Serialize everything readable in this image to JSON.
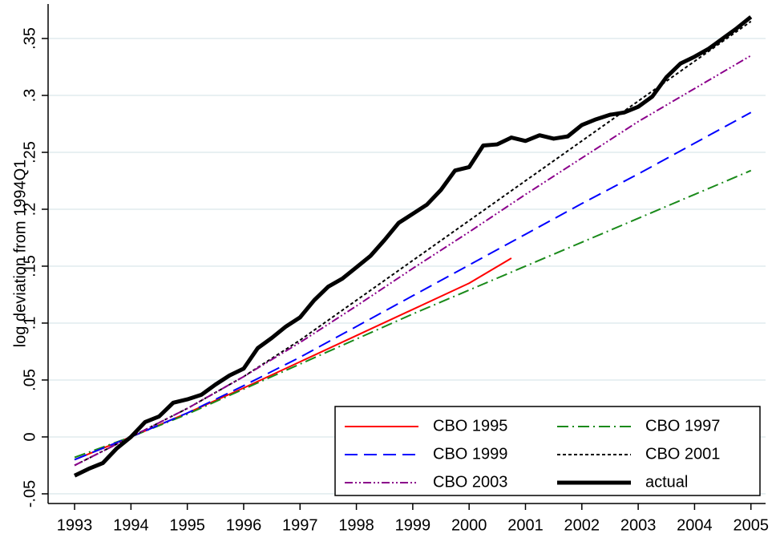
{
  "chart_data": {
    "type": "line",
    "y_label": "log deviation from 1994Q1",
    "xlim": [
      1992.53,
      2005.26
    ],
    "ylim": [
      -0.0585,
      0.3803
    ],
    "xticks": [
      1993,
      1994,
      1995,
      1996,
      1997,
      1998,
      1999,
      2000,
      2001,
      2002,
      2003,
      2004,
      2005
    ],
    "yticks": [
      {
        "value": -0.05,
        "label": "-.05"
      },
      0,
      {
        "value": 0.05,
        "label": ".05"
      },
      {
        "value": 0.1,
        "label": ".1"
      },
      {
        "value": 0.15,
        "label": ".15"
      },
      {
        "value": 0.2,
        "label": ".2"
      },
      {
        "value": 0.25,
        "label": ".25"
      },
      {
        "value": 0.3,
        "label": ".3"
      },
      {
        "value": 0.35,
        "label": ".35"
      }
    ],
    "grid": true,
    "legend": "lower right",
    "series": [
      {
        "name": "CBO 1995",
        "color": "#ff0000",
        "dash": "none",
        "width": 2,
        "x": [
          1993,
          1994,
          1995,
          1996,
          1997,
          1998,
          1999,
          2000,
          2000.75
        ],
        "values": [
          -0.02,
          0,
          0.021,
          0.043,
          0.066,
          0.089,
          0.112,
          0.135,
          0.157
        ]
      },
      {
        "name": "CBO 1997",
        "color": "#1a8a1a",
        "dash": "14 5 2 5",
        "width": 2,
        "x": [
          1993,
          1994,
          1995,
          1996,
          1997,
          1998,
          1999,
          2000,
          2001,
          2002,
          2003,
          2004,
          2005
        ],
        "values": [
          -0.018,
          0,
          0.02,
          0.042,
          0.064,
          0.086,
          0.108,
          0.129,
          0.15,
          0.171,
          0.192,
          0.213,
          0.234
        ]
      },
      {
        "name": "CBO 1999",
        "color": "#0000ff",
        "dash": "16 8",
        "width": 2,
        "x": [
          1993,
          1994,
          1995,
          1996,
          1997,
          1998,
          1999,
          2000,
          2001,
          2002,
          2003,
          2004,
          2005
        ],
        "values": [
          -0.02,
          0,
          0.021,
          0.045,
          0.07,
          0.097,
          0.124,
          0.151,
          0.178,
          0.205,
          0.231,
          0.258,
          0.285
        ]
      },
      {
        "name": "CBO 2001",
        "color": "#000000",
        "dash": "4 3",
        "width": 2,
        "x": [
          1993,
          1994,
          1995,
          1996,
          1997,
          1998,
          1999,
          2000,
          2001,
          2002,
          2003,
          2004,
          2005
        ],
        "values": [
          -0.025,
          0,
          0.025,
          0.053,
          0.085,
          0.12,
          0.155,
          0.19,
          0.225,
          0.26,
          0.295,
          0.33,
          0.365
        ]
      },
      {
        "name": "CBO 2003",
        "color": "#8b008b",
        "dash": "10 3 2 3 2 3",
        "width": 2,
        "x": [
          1993,
          1994,
          1995,
          1996,
          1997,
          1998,
          1999,
          2000,
          2001,
          2002,
          2003,
          2004,
          2005
        ],
        "values": [
          -0.025,
          0,
          0.025,
          0.053,
          0.083,
          0.115,
          0.148,
          0.18,
          0.213,
          0.245,
          0.277,
          0.306,
          0.335
        ]
      },
      {
        "name": "actual",
        "color": "#000000",
        "dash": "none",
        "width": 5,
        "x": [
          1993,
          1993.25,
          1993.5,
          1993.75,
          1994,
          1994.25,
          1994.5,
          1994.75,
          1995,
          1995.25,
          1995.5,
          1995.75,
          1996,
          1996.25,
          1996.5,
          1996.75,
          1997,
          1997.25,
          1997.5,
          1997.75,
          1998,
          1998.25,
          1998.5,
          1998.75,
          1999,
          1999.25,
          1999.5,
          1999.75,
          2000,
          2000.25,
          2000.5,
          2000.75,
          2001,
          2001.25,
          2001.5,
          2001.75,
          2002,
          2002.25,
          2002.5,
          2002.75,
          2003,
          2003.25,
          2003.5,
          2003.75,
          2004,
          2004.25,
          2004.5,
          2004.75,
          2005
        ],
        "values": [
          -0.034,
          -0.028,
          -0.023,
          -0.01,
          0,
          0.013,
          0.018,
          0.03,
          0.033,
          0.037,
          0.046,
          0.054,
          0.06,
          0.078,
          0.087,
          0.097,
          0.105,
          0.12,
          0.132,
          0.139,
          0.149,
          0.159,
          0.173,
          0.188,
          0.196,
          0.204,
          0.217,
          0.234,
          0.237,
          0.256,
          0.257,
          0.263,
          0.26,
          0.265,
          0.262,
          0.264,
          0.274,
          0.279,
          0.283,
          0.285,
          0.29,
          0.299,
          0.316,
          0.328,
          0.334,
          0.341,
          0.35,
          0.359,
          0.369
        ]
      }
    ]
  }
}
